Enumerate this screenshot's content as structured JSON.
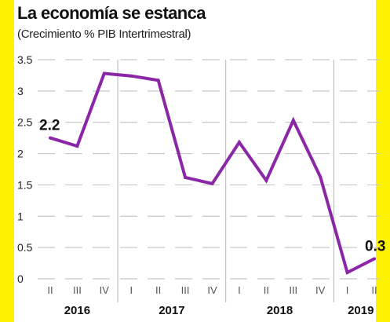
{
  "colors": {
    "side_bar": "#fff200",
    "line": "#8b26a6",
    "grid": "#c8c8c8",
    "text": "#222222"
  },
  "chart_data": {
    "type": "line",
    "title": "La economía se estanca",
    "subtitle": "(Crecimiento % PIB Intertrimestral)",
    "ylim": [
      0,
      3.5
    ],
    "y_ticks": [
      "0",
      "0.5",
      "1",
      "1.5",
      "2",
      "2.5",
      "3",
      "3.5"
    ],
    "grid": true,
    "quarter_labels": [
      "II",
      "III",
      "IV",
      "I",
      "II",
      "III",
      "IV",
      "I",
      "II",
      "III",
      "IV",
      "I",
      "II"
    ],
    "years": [
      "2016",
      "2017",
      "2018",
      "2019"
    ],
    "series": [
      {
        "values": [
          2.25,
          2.12,
          3.28,
          3.24,
          3.17,
          1.62,
          1.52,
          2.18,
          1.57,
          2.53,
          1.63,
          0.1,
          0.32
        ]
      }
    ],
    "annotations": [
      {
        "point_index": 0,
        "text": "2.2"
      },
      {
        "point_index": 12,
        "text": "0.3"
      }
    ]
  }
}
